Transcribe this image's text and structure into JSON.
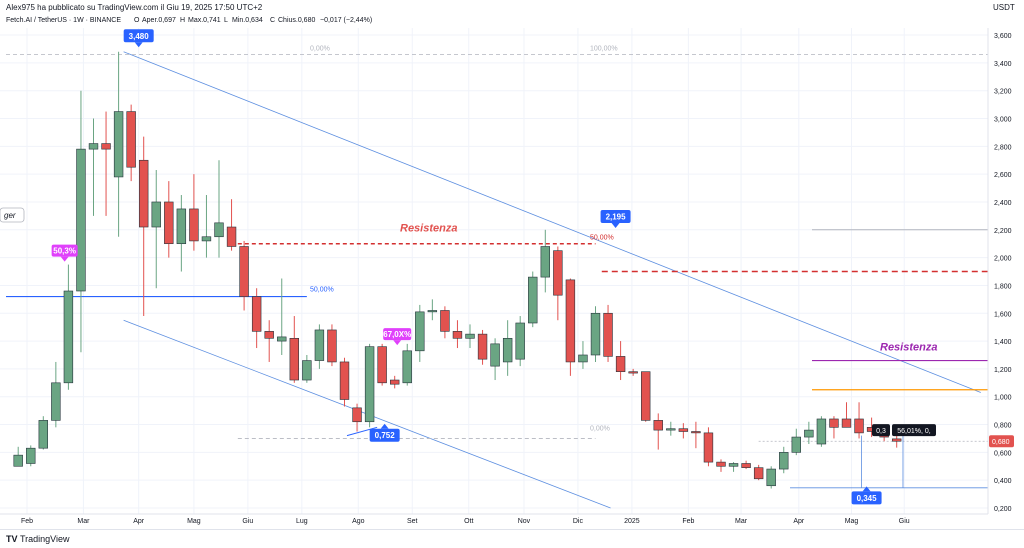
{
  "header": {
    "publisher": "Alex975 ha pubblicato su TradingView.com il Giu 19, 2025 17:50 UTC+2",
    "currency": "USDT"
  },
  "legend": {
    "symbol": "Fetch.AI / TetherUS · 1W · BINANCE",
    "open_label": "O",
    "open": "Aper.0,697",
    "high_label": "H",
    "high": "Max.0,741",
    "low_label": "L",
    "low": "Min.0,634",
    "close_label": "C",
    "close": "Chius.0,680",
    "change": "−0,017 (−2,44%)"
  },
  "footer": {
    "logo": "TV",
    "brand": "TradingView"
  },
  "colors": {
    "up": "#6aa583",
    "down": "#e2524f",
    "blue": "#2962ff",
    "purple": "#9c27b0",
    "orange": "#ff9800",
    "magenta": "#e040fb"
  },
  "chart_data": {
    "type": "candlestick",
    "symbol": "Fetch.AI / TetherUS",
    "timeframe": "1W",
    "exchange": "BINANCE",
    "ylim": [
      0.2,
      3.6
    ],
    "y_ticks": [
      0.2,
      0.4,
      0.6,
      0.8,
      1.0,
      1.2,
      1.4,
      1.6,
      1.8,
      2.0,
      2.2,
      2.4,
      2.6,
      2.8,
      3.0,
      3.2,
      3.4,
      3.6
    ],
    "y_tick_labels": [
      "0,200",
      "0,400",
      "0,600",
      "0,800",
      "1,000",
      "1,200",
      "1,400",
      "1,600",
      "1,800",
      "2,000",
      "2,200",
      "2,400",
      "2,600",
      "2,800",
      "3,000",
      "3,200",
      "3,400",
      "3,600"
    ],
    "x_labels": [
      {
        "week": 0.7,
        "text": "Feb"
      },
      {
        "week": 5.2,
        "text": "Mar"
      },
      {
        "week": 9.6,
        "text": "Apr"
      },
      {
        "week": 14.0,
        "text": "Mag"
      },
      {
        "week": 18.3,
        "text": "Giu"
      },
      {
        "week": 22.6,
        "text": "Lug"
      },
      {
        "week": 27.1,
        "text": "Ago"
      },
      {
        "week": 31.4,
        "text": "Set"
      },
      {
        "week": 35.9,
        "text": "Ott"
      },
      {
        "week": 40.3,
        "text": "Nov"
      },
      {
        "week": 44.6,
        "text": "Dic"
      },
      {
        "week": 48.9,
        "text": "2025"
      },
      {
        "week": 53.4,
        "text": "Feb"
      },
      {
        "week": 57.6,
        "text": "Mar"
      },
      {
        "week": 62.2,
        "text": "Apr"
      },
      {
        "week": 66.4,
        "text": "Mag"
      },
      {
        "week": 70.6,
        "text": "Giu"
      }
    ],
    "candles": [
      {
        "o": 0.5,
        "h": 0.64,
        "l": 0.5,
        "c": 0.58
      },
      {
        "o": 0.52,
        "h": 0.65,
        "l": 0.5,
        "c": 0.63
      },
      {
        "o": 0.63,
        "h": 0.86,
        "l": 0.62,
        "c": 0.83
      },
      {
        "o": 0.83,
        "h": 1.25,
        "l": 0.78,
        "c": 1.1
      },
      {
        "o": 1.1,
        "h": 1.95,
        "l": 1.05,
        "c": 1.76
      },
      {
        "o": 1.76,
        "h": 3.2,
        "l": 1.32,
        "c": 2.78
      },
      {
        "o": 2.78,
        "h": 3.0,
        "l": 2.3,
        "c": 2.82
      },
      {
        "o": 2.82,
        "h": 3.05,
        "l": 2.3,
        "c": 2.78
      },
      {
        "o": 2.58,
        "h": 3.48,
        "l": 2.15,
        "c": 3.05
      },
      {
        "o": 3.05,
        "h": 3.1,
        "l": 2.55,
        "c": 2.65
      },
      {
        "o": 2.7,
        "h": 2.87,
        "l": 1.58,
        "c": 2.22
      },
      {
        "o": 2.22,
        "h": 2.63,
        "l": 1.78,
        "c": 2.4
      },
      {
        "o": 2.4,
        "h": 2.55,
        "l": 2.0,
        "c": 2.1
      },
      {
        "o": 2.1,
        "h": 2.45,
        "l": 1.9,
        "c": 2.35
      },
      {
        "o": 2.35,
        "h": 2.6,
        "l": 2.05,
        "c": 2.12
      },
      {
        "o": 2.12,
        "h": 2.45,
        "l": 2.0,
        "c": 2.15
      },
      {
        "o": 2.15,
        "h": 2.7,
        "l": 2.0,
        "c": 2.25
      },
      {
        "o": 2.22,
        "h": 2.42,
        "l": 2.05,
        "c": 2.08
      },
      {
        "o": 2.08,
        "h": 2.12,
        "l": 1.62,
        "c": 1.72
      },
      {
        "o": 1.72,
        "h": 1.78,
        "l": 1.35,
        "c": 1.47
      },
      {
        "o": 1.47,
        "h": 1.55,
        "l": 1.25,
        "c": 1.42
      },
      {
        "o": 1.4,
        "h": 1.85,
        "l": 1.3,
        "c": 1.43
      },
      {
        "o": 1.42,
        "h": 1.58,
        "l": 1.1,
        "c": 1.12
      },
      {
        "o": 1.12,
        "h": 1.3,
        "l": 1.1,
        "c": 1.26
      },
      {
        "o": 1.26,
        "h": 1.52,
        "l": 1.2,
        "c": 1.48
      },
      {
        "o": 1.48,
        "h": 1.52,
        "l": 1.22,
        "c": 1.25
      },
      {
        "o": 1.25,
        "h": 1.28,
        "l": 0.93,
        "c": 0.98
      },
      {
        "o": 0.92,
        "h": 0.95,
        "l": 0.75,
        "c": 0.82
      },
      {
        "o": 0.82,
        "h": 1.38,
        "l": 0.78,
        "c": 1.36
      },
      {
        "o": 1.36,
        "h": 1.38,
        "l": 1.08,
        "c": 1.1
      },
      {
        "o": 1.12,
        "h": 1.15,
        "l": 1.06,
        "c": 1.09
      },
      {
        "o": 1.1,
        "h": 1.38,
        "l": 1.08,
        "c": 1.33
      },
      {
        "o": 1.33,
        "h": 1.66,
        "l": 1.25,
        "c": 1.61
      },
      {
        "o": 1.61,
        "h": 1.7,
        "l": 1.55,
        "c": 1.62
      },
      {
        "o": 1.62,
        "h": 1.65,
        "l": 1.42,
        "c": 1.47
      },
      {
        "o": 1.47,
        "h": 1.55,
        "l": 1.35,
        "c": 1.42
      },
      {
        "o": 1.42,
        "h": 1.52,
        "l": 1.35,
        "c": 1.45
      },
      {
        "o": 1.45,
        "h": 1.48,
        "l": 1.23,
        "c": 1.27
      },
      {
        "o": 1.22,
        "h": 1.42,
        "l": 1.12,
        "c": 1.38
      },
      {
        "o": 1.25,
        "h": 1.55,
        "l": 1.15,
        "c": 1.42
      },
      {
        "o": 1.27,
        "h": 1.58,
        "l": 1.22,
        "c": 1.53
      },
      {
        "o": 1.53,
        "h": 1.9,
        "l": 1.5,
        "c": 1.86
      },
      {
        "o": 1.86,
        "h": 2.2,
        "l": 1.75,
        "c": 2.08
      },
      {
        "o": 2.05,
        "h": 2.08,
        "l": 1.55,
        "c": 1.73
      },
      {
        "o": 1.84,
        "h": 1.85,
        "l": 1.15,
        "c": 1.25
      },
      {
        "o": 1.25,
        "h": 1.4,
        "l": 1.2,
        "c": 1.3
      },
      {
        "o": 1.3,
        "h": 1.65,
        "l": 1.25,
        "c": 1.6
      },
      {
        "o": 1.6,
        "h": 1.66,
        "l": 1.25,
        "c": 1.29
      },
      {
        "o": 1.29,
        "h": 1.4,
        "l": 1.12,
        "c": 1.18
      },
      {
        "o": 1.18,
        "h": 1.2,
        "l": 1.15,
        "c": 1.17
      },
      {
        "o": 1.18,
        "h": 1.18,
        "l": 0.82,
        "c": 0.83
      },
      {
        "o": 0.83,
        "h": 0.88,
        "l": 0.62,
        "c": 0.76
      },
      {
        "o": 0.76,
        "h": 0.82,
        "l": 0.72,
        "c": 0.77
      },
      {
        "o": 0.77,
        "h": 0.81,
        "l": 0.7,
        "c": 0.75
      },
      {
        "o": 0.75,
        "h": 0.82,
        "l": 0.63,
        "c": 0.74
      },
      {
        "o": 0.74,
        "h": 0.78,
        "l": 0.5,
        "c": 0.53
      },
      {
        "o": 0.53,
        "h": 0.55,
        "l": 0.46,
        "c": 0.5
      },
      {
        "o": 0.5,
        "h": 0.53,
        "l": 0.46,
        "c": 0.52
      },
      {
        "o": 0.52,
        "h": 0.54,
        "l": 0.48,
        "c": 0.49
      },
      {
        "o": 0.49,
        "h": 0.51,
        "l": 0.4,
        "c": 0.41
      },
      {
        "o": 0.36,
        "h": 0.5,
        "l": 0.34,
        "c": 0.48
      },
      {
        "o": 0.48,
        "h": 0.64,
        "l": 0.45,
        "c": 0.6
      },
      {
        "o": 0.6,
        "h": 0.77,
        "l": 0.58,
        "c": 0.71
      },
      {
        "o": 0.71,
        "h": 0.82,
        "l": 0.66,
        "c": 0.76
      },
      {
        "o": 0.66,
        "h": 0.86,
        "l": 0.64,
        "c": 0.84
      },
      {
        "o": 0.84,
        "h": 0.86,
        "l": 0.7,
        "c": 0.78
      },
      {
        "o": 0.84,
        "h": 0.96,
        "l": 0.78,
        "c": 0.78
      },
      {
        "o": 0.84,
        "h": 0.96,
        "l": 0.7,
        "c": 0.74
      },
      {
        "o": 0.78,
        "h": 0.85,
        "l": 0.71,
        "c": 0.75
      },
      {
        "o": 0.76,
        "h": 0.8,
        "l": 0.68,
        "c": 0.71
      },
      {
        "o": 0.697,
        "h": 0.741,
        "l": 0.634,
        "c": 0.68
      }
    ],
    "annotations": {
      "top_label": "3,480",
      "dec_high_label": "2,195",
      "aug_low_label": "0,752",
      "apr_low_label": "0,345",
      "current_price_label": "0,680",
      "fib_top_label": "0,00%",
      "fib_right_top_label": "100,00%",
      "fib_50_label": "50,00%",
      "fib_50_left_label": "50,00%",
      "fib_bottom_label": "0,00%",
      "feb_pct_label": "50,3%",
      "aug_pct_label": "67,0X%",
      "resistenza_1": "Resistenza",
      "resistenza_2": "Resistenza",
      "mini_label_1": "0,3",
      "mini_label_2": "56,01%, 0,",
      "edge_label": "ger"
    }
  }
}
